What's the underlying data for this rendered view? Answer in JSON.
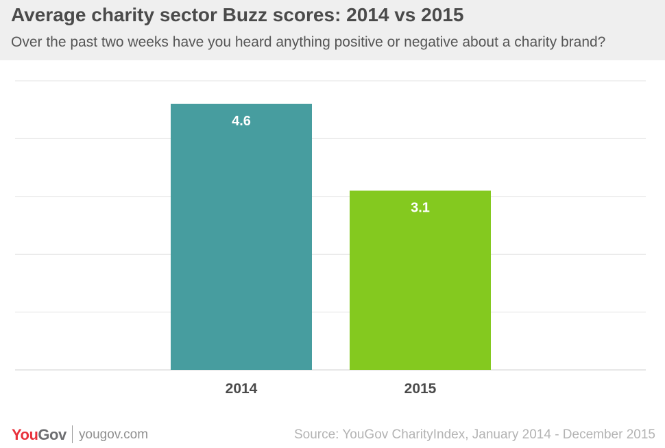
{
  "header": {
    "title": "Average charity sector Buzz scores: 2014 vs 2015",
    "subtitle": "Over the past two weeks have you heard anything positive or negative about a charity brand?"
  },
  "chart_data": {
    "type": "bar",
    "categories": [
      "2014",
      "2015"
    ],
    "values": [
      4.6,
      3.1
    ],
    "data_labels": [
      "4.6",
      "3.1"
    ],
    "colors": [
      "#479d9f",
      "#84c91f"
    ],
    "title": "Average charity sector Buzz scores: 2014 vs 2015",
    "subtitle": "Over the past two weeks have you heard anything positive or negative about a charity brand?",
    "xlabel": "",
    "ylabel": "",
    "ylim": [
      0,
      5
    ],
    "grid": true,
    "legend": "none"
  },
  "footer": {
    "logo_you": "You",
    "logo_gov": "Gov",
    "site": "yougov.com",
    "source": "Source: YouGov CharityIndex, January 2014 - December 2015"
  }
}
